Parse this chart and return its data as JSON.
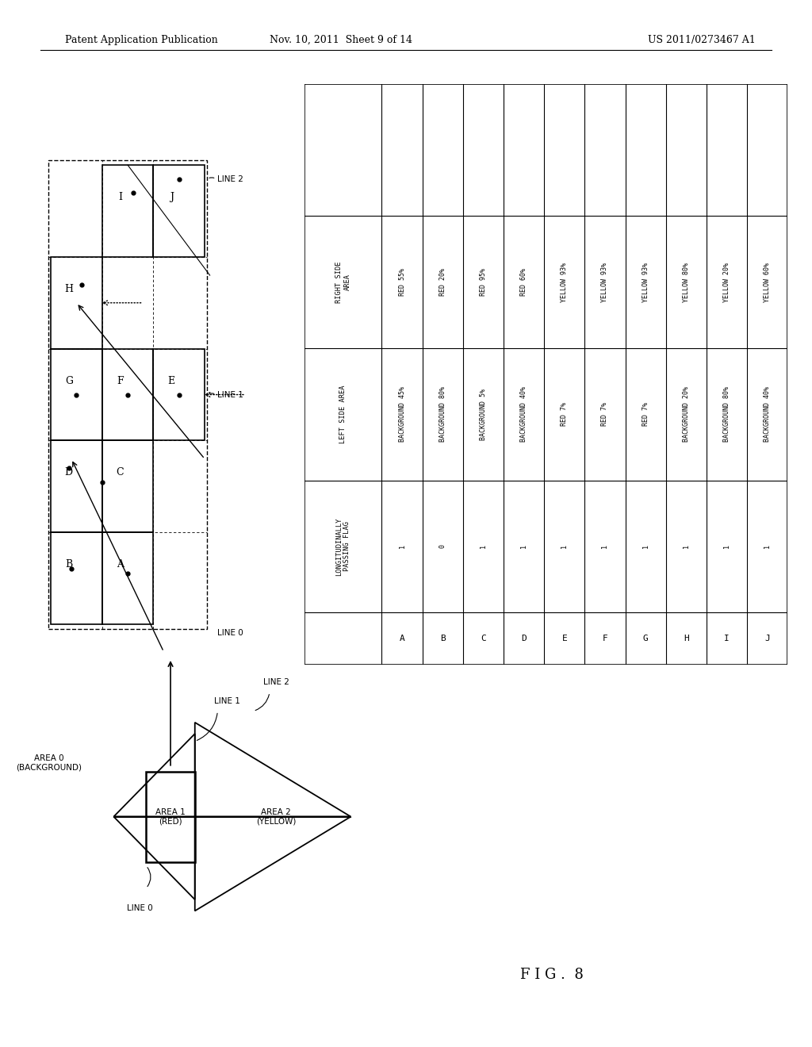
{
  "header_left": "Patent Application Publication",
  "header_mid": "Nov. 10, 2011  Sheet 9 of 14",
  "header_right": "US 2011/0273467 A1",
  "fig_label": "F I G .  8",
  "table": {
    "row_labels": [
      "A",
      "B",
      "C",
      "D",
      "E",
      "F",
      "G",
      "H",
      "I",
      "J"
    ],
    "col_headers": [
      "LONGITUDINALLY\nPASSING FLAG",
      "LEFT SIDE AREA",
      "RIGHT SIDE\nAREA"
    ],
    "data": [
      [
        "1",
        "BACKGROUND 45%",
        "RED 55%"
      ],
      [
        "0",
        "BACKGROUND 80%",
        "RED 20%"
      ],
      [
        "1",
        "BACKGROUND 5%",
        "RED 95%"
      ],
      [
        "1",
        "BACKGROUND 40%",
        "RED 60%"
      ],
      [
        "1",
        "RED 7%",
        "YELLOW 93%"
      ],
      [
        "1",
        "RED 7%",
        "YELLOW 93%"
      ],
      [
        "1",
        "RED 7%",
        "YELLOW 93%"
      ],
      [
        "1",
        "BACKGROUND 20%",
        "YELLOW 80%"
      ],
      [
        "1",
        "BACKGROUND 80%",
        "YELLOW 20%"
      ],
      [
        "1",
        "BACKGROUND 40%",
        "YELLOW 60%"
      ]
    ]
  }
}
